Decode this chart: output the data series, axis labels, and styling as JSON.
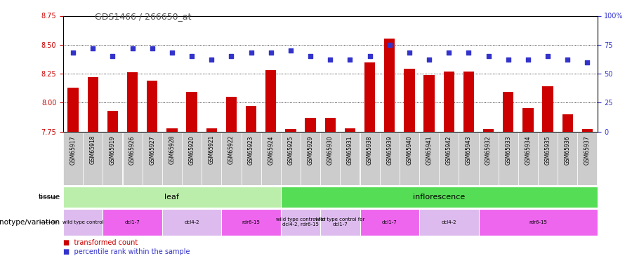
{
  "title": "GDS1466 / 266650_at",
  "samples": [
    "GSM65917",
    "GSM65918",
    "GSM65919",
    "GSM65926",
    "GSM65927",
    "GSM65928",
    "GSM65920",
    "GSM65921",
    "GSM65922",
    "GSM65923",
    "GSM65924",
    "GSM65925",
    "GSM65929",
    "GSM65930",
    "GSM65931",
    "GSM65938",
    "GSM65939",
    "GSM65940",
    "GSM65941",
    "GSM65942",
    "GSM65943",
    "GSM65932",
    "GSM65933",
    "GSM65934",
    "GSM65935",
    "GSM65936",
    "GSM65937"
  ],
  "transformed_count": [
    8.13,
    8.22,
    7.93,
    8.26,
    8.19,
    7.78,
    8.09,
    7.78,
    8.05,
    7.97,
    8.28,
    7.77,
    7.87,
    7.87,
    7.78,
    8.35,
    8.55,
    8.29,
    8.24,
    8.27,
    8.27,
    7.77,
    8.09,
    7.95,
    8.14,
    7.9,
    7.77
  ],
  "percentile_rank": [
    68,
    72,
    65,
    72,
    72,
    68,
    65,
    62,
    65,
    68,
    68,
    70,
    65,
    62,
    62,
    65,
    75,
    68,
    62,
    68,
    68,
    65,
    62,
    62,
    65,
    62,
    60
  ],
  "ylim_left": [
    7.75,
    8.75
  ],
  "ylim_right": [
    0,
    100
  ],
  "yticks_left": [
    7.75,
    8.0,
    8.25,
    8.5,
    8.75
  ],
  "yticks_right": [
    0,
    25,
    50,
    75,
    100
  ],
  "ytick_right_labels": [
    "0",
    "25",
    "50",
    "75",
    "100%"
  ],
  "hlines": [
    8.0,
    8.25,
    8.5
  ],
  "bar_color": "#cc0000",
  "dot_color": "#3333cc",
  "bar_bottom": 7.75,
  "tissue_groups": [
    {
      "label": "leaf",
      "start": 0,
      "end": 11,
      "color": "#bbeeaa"
    },
    {
      "label": "inflorescence",
      "start": 11,
      "end": 27,
      "color": "#55dd55"
    }
  ],
  "genotype_groups": [
    {
      "label": "wild type control",
      "start": 0,
      "end": 2,
      "color": "#ddbbee"
    },
    {
      "label": "dcl1-7",
      "start": 2,
      "end": 5,
      "color": "#ee66ee"
    },
    {
      "label": "dcl4-2",
      "start": 5,
      "end": 8,
      "color": "#ddbbee"
    },
    {
      "label": "rdr6-15",
      "start": 8,
      "end": 11,
      "color": "#ee66ee"
    },
    {
      "label": "wild type control for\ndcl4-2, rdr6-15",
      "start": 11,
      "end": 13,
      "color": "#ddbbee"
    },
    {
      "label": "wild type control for\ndcl1-7",
      "start": 13,
      "end": 15,
      "color": "#ddbbee"
    },
    {
      "label": "dcl1-7",
      "start": 15,
      "end": 18,
      "color": "#ee66ee"
    },
    {
      "label": "dcl4-2",
      "start": 18,
      "end": 21,
      "color": "#ddbbee"
    },
    {
      "label": "rdr6-15",
      "start": 21,
      "end": 27,
      "color": "#ee66ee"
    }
  ],
  "legend_labels": [
    "transformed count",
    "percentile rank within the sample"
  ],
  "legend_colors": [
    "#cc0000",
    "#3333cc"
  ],
  "left_axis_color": "#cc0000",
  "right_axis_color": "#3333cc",
  "xticklabel_bg": "#cccccc",
  "title_color": "#555555"
}
